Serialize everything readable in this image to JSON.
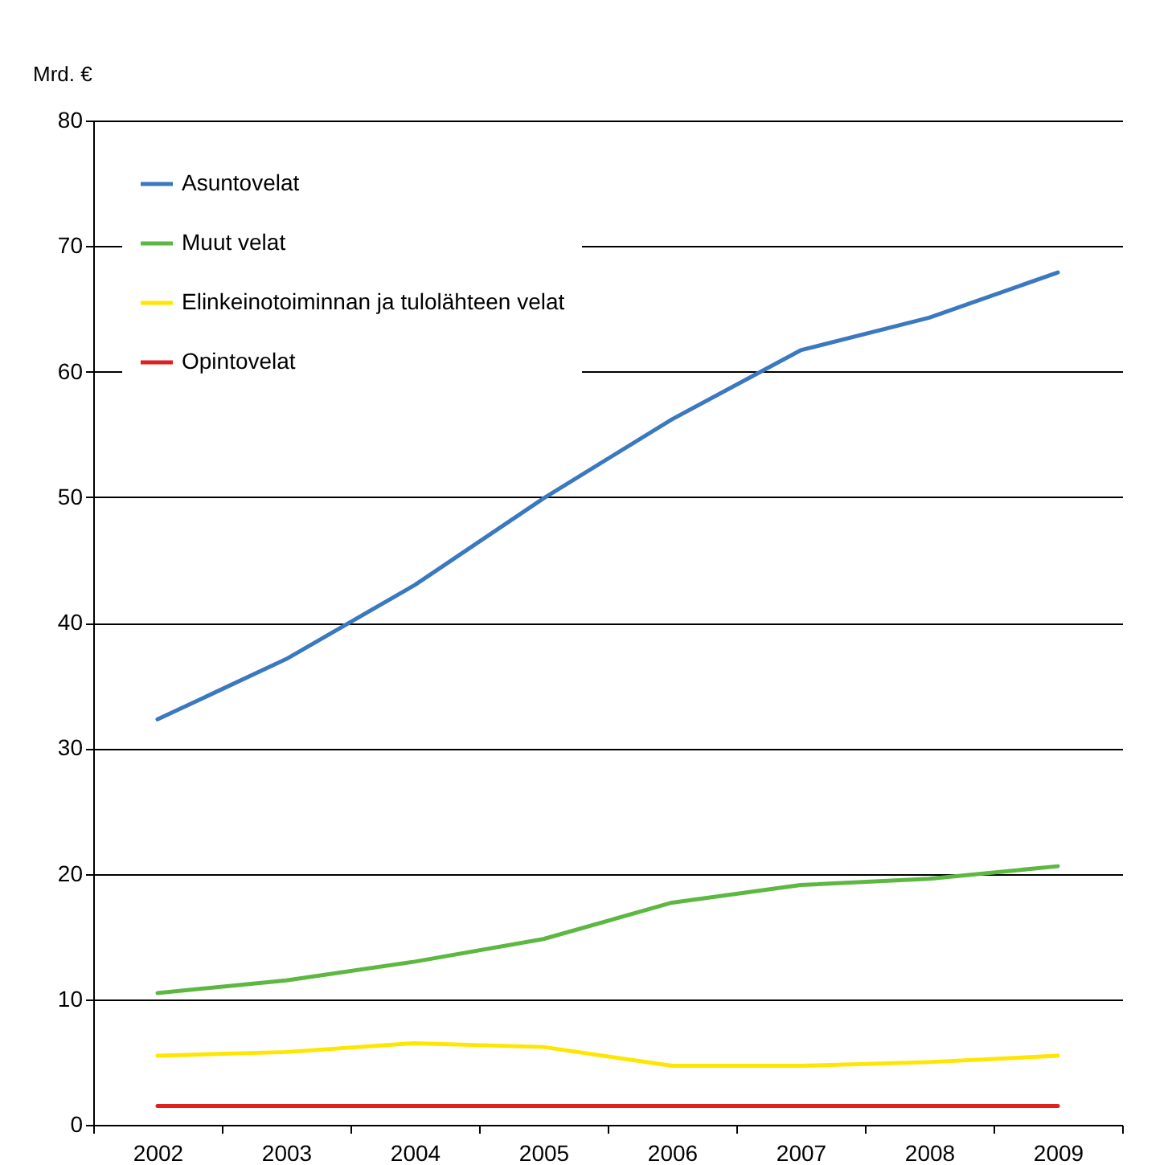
{
  "chart_data": {
    "type": "line",
    "ylabel": "Mrd. €",
    "categories": [
      "2002",
      "2003",
      "2004",
      "2005",
      "2006",
      "2007",
      "2008",
      "2009"
    ],
    "series": [
      {
        "name": "Asuntovelat",
        "color": "#3a78c0",
        "values": [
          32.3,
          37.1,
          43.0,
          49.9,
          56.2,
          61.7,
          64.3,
          67.9
        ]
      },
      {
        "name": "Muut velat",
        "color": "#5cb840",
        "values": [
          10.5,
          11.5,
          13.0,
          14.8,
          17.7,
          19.1,
          19.6,
          20.6
        ]
      },
      {
        "name": "Elinkeinotoiminnan ja tulolähteen velat",
        "color": "#ffe600",
        "values": [
          5.5,
          5.8,
          6.5,
          6.2,
          4.7,
          4.7,
          5.0,
          5.5
        ]
      },
      {
        "name": "Opintovelat",
        "color": "#e02020",
        "values": [
          1.5,
          1.5,
          1.5,
          1.5,
          1.5,
          1.5,
          1.5,
          1.5
        ]
      }
    ],
    "ylim": [
      0,
      80
    ],
    "yticks": [
      0,
      10,
      20,
      30,
      40,
      50,
      60,
      70,
      80
    ],
    "grid": "y",
    "legend": "top left"
  }
}
